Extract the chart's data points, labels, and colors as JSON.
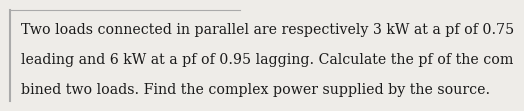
{
  "text_lines": [
    "Two loads connected in parallel are respectively 3 kW at a pf of 0.75",
    "leading and 6 kW at a pf of 0.95 lagging. Calculate the pf of the com",
    "bined two loads. Find the complex power supplied by the source."
  ],
  "background_color": "#eeece8",
  "text_color": "#1a1a1a",
  "font_size": 10.2,
  "top_line_color": "#aaaaaa",
  "left_line_color": "#aaaaaa",
  "fig_width": 4.18,
  "fig_height": 0.94
}
